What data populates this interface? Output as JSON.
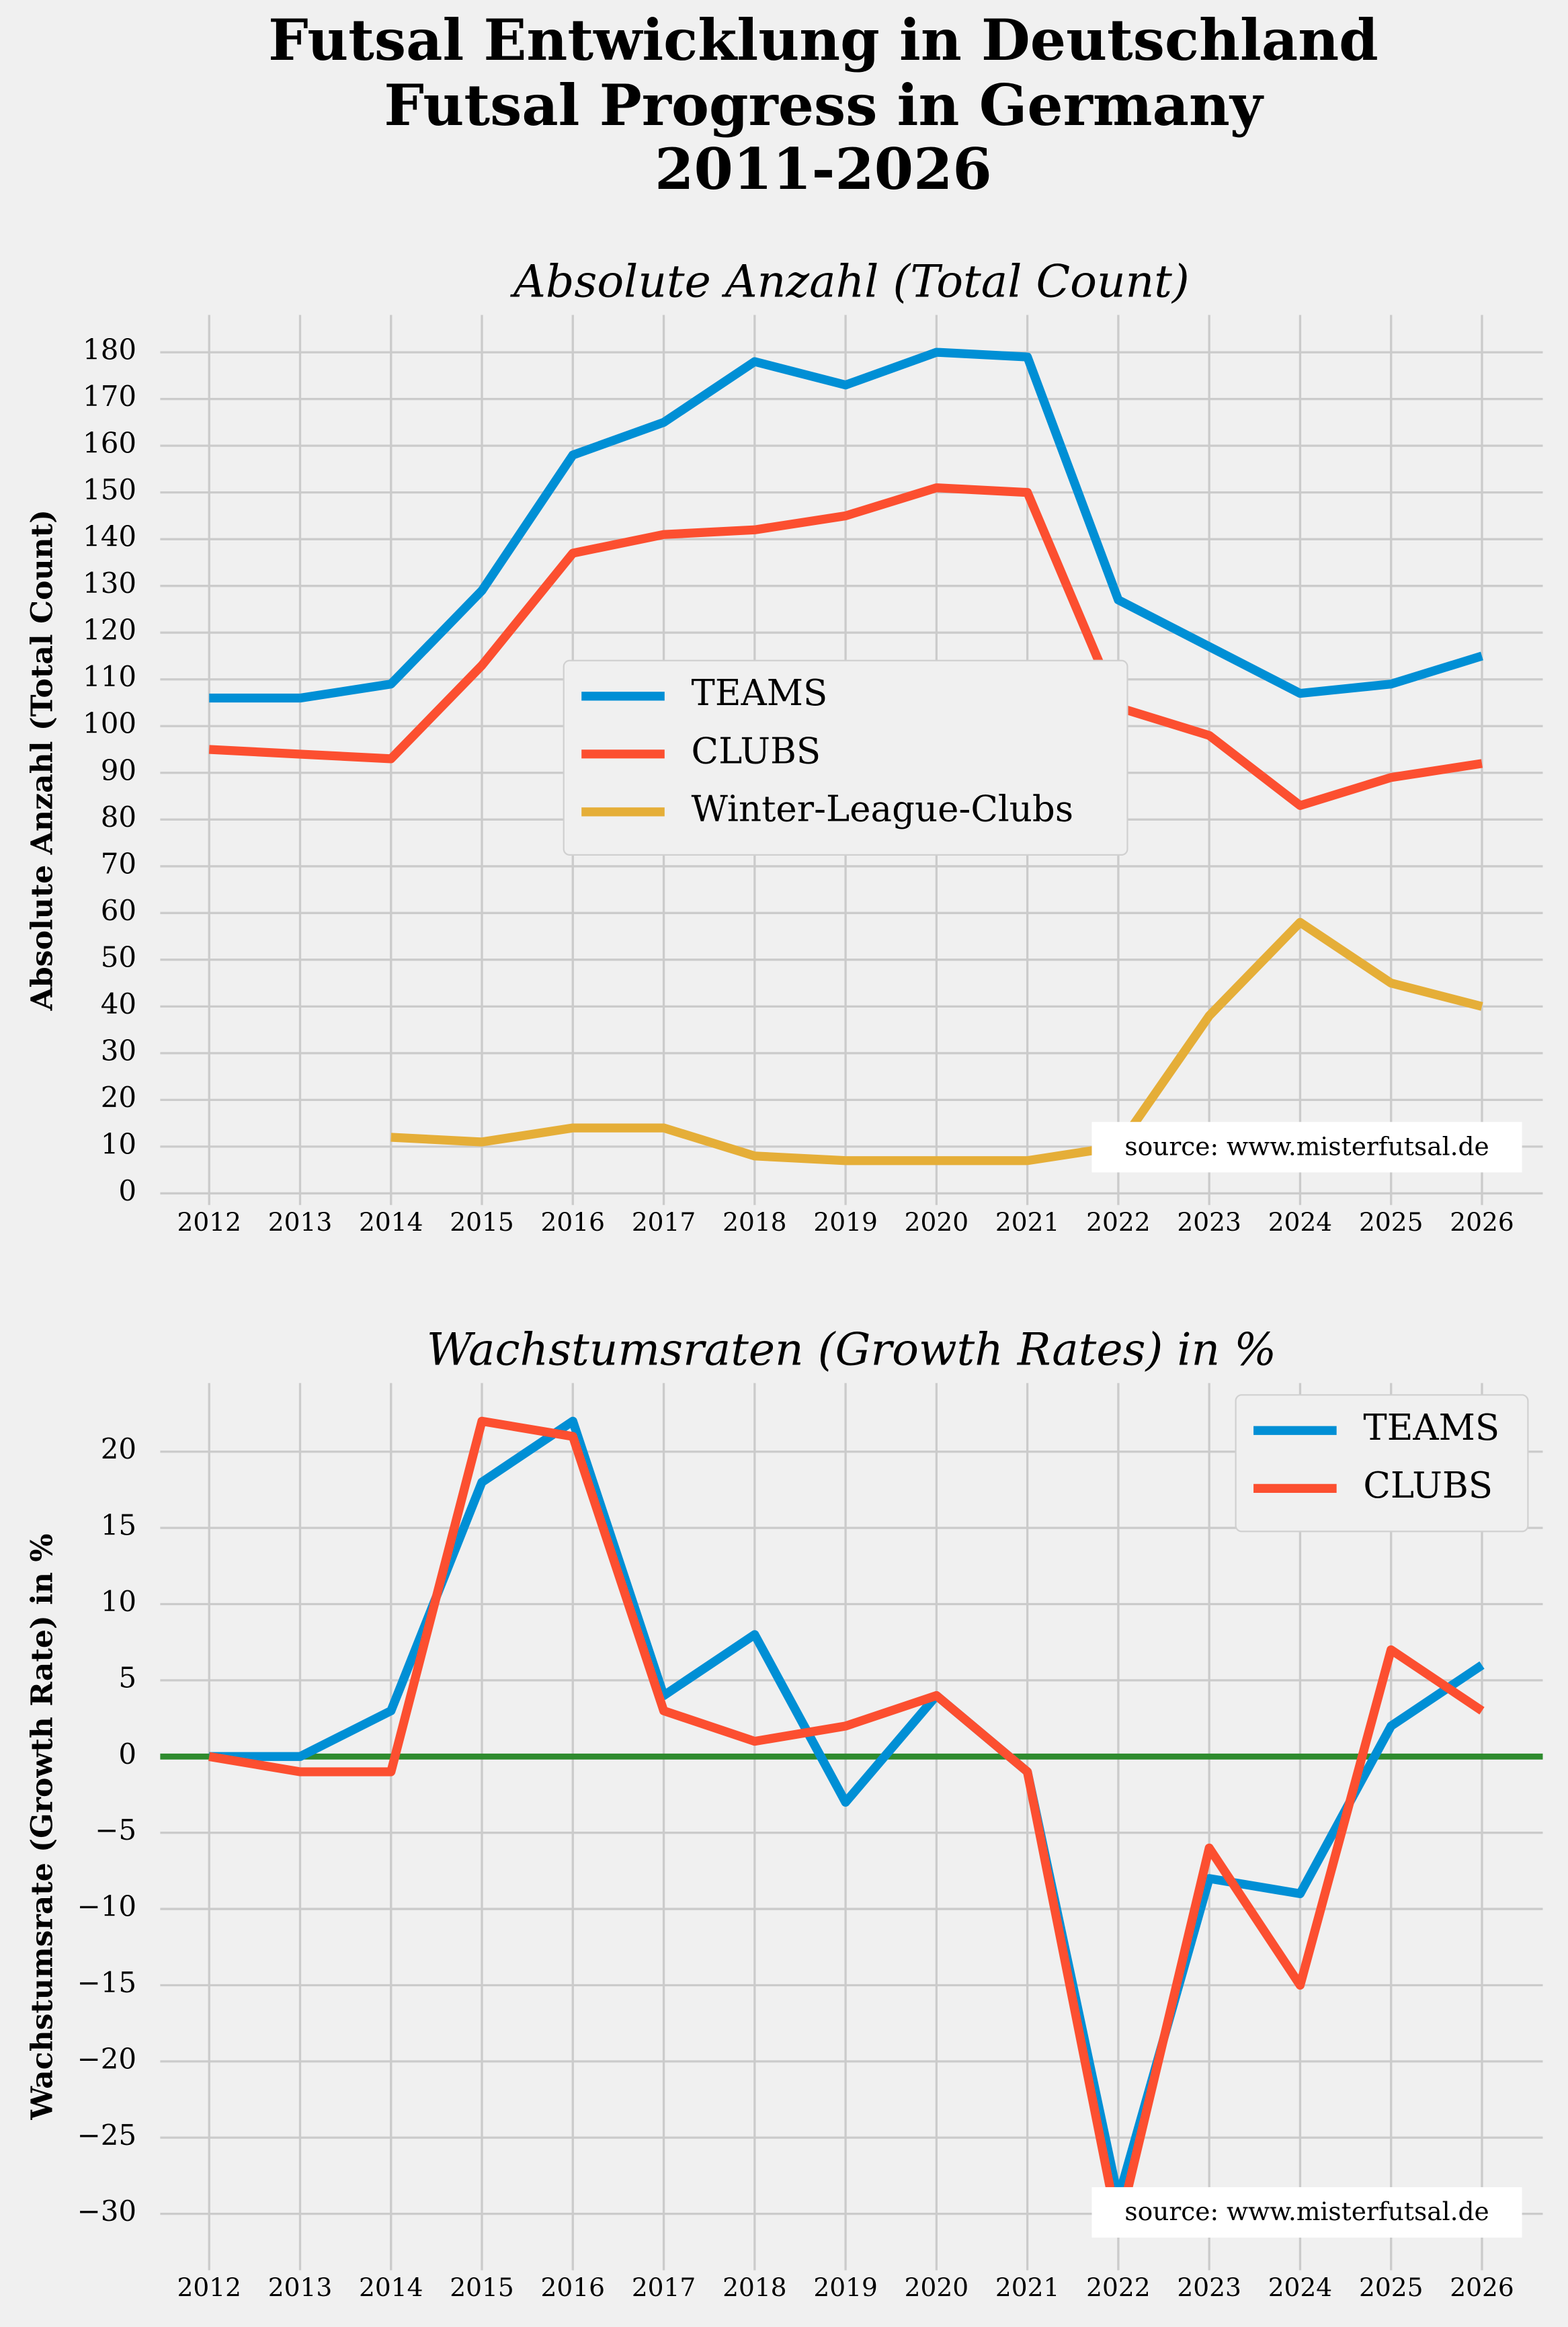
{
  "title": [
    "Futsal Entwicklung in Deutschland",
    "Futsal Progress in Germany",
    "2011-2026"
  ],
  "chart_data": [
    {
      "type": "line",
      "title": "Absolute Anzahl (Total Count)",
      "y_label": "Absolute Anzahl (Total Count)",
      "categories": [
        "2012",
        "2013",
        "2014",
        "2015",
        "2016",
        "2017",
        "2018",
        "2019",
        "2020",
        "2021",
        "2022",
        "2023",
        "2024",
        "2025",
        "2026"
      ],
      "series": [
        {
          "name": "TEAMS",
          "color": "#008fd5",
          "values": [
            106,
            106,
            109,
            129,
            158,
            165,
            178,
            173,
            180,
            179,
            127,
            117,
            107,
            109,
            115
          ]
        },
        {
          "name": "CLUBS",
          "color": "#fc4f30",
          "values": [
            95,
            94,
            93,
            113,
            137,
            141,
            142,
            145,
            151,
            150,
            104,
            98,
            83,
            89,
            92
          ]
        },
        {
          "name": "Winter-League-Clubs",
          "color": "#e5ae38",
          "values": [
            null,
            null,
            12,
            11,
            14,
            14,
            8,
            7,
            7,
            7,
            10,
            38,
            58,
            45,
            40
          ]
        }
      ],
      "ylim": [
        -2.5,
        188
      ],
      "yticks": [
        0,
        10,
        20,
        30,
        40,
        50,
        60,
        70,
        80,
        90,
        100,
        110,
        120,
        130,
        140,
        150,
        160,
        170,
        180
      ],
      "grid": true,
      "legend": "center",
      "annotation": "source: www.misterfutsal.de"
    },
    {
      "type": "line",
      "title": "Wachstumsraten (Growth Rates) in %",
      "y_label": "Wachstumsrate (Growth Rate) in %",
      "categories": [
        "2012",
        "2013",
        "2014",
        "2015",
        "2016",
        "2017",
        "2018",
        "2019",
        "2020",
        "2021",
        "2022",
        "2023",
        "2024",
        "2025",
        "2026"
      ],
      "series": [
        {
          "name": "TEAMS",
          "color": "#008fd5",
          "values": [
            0,
            0,
            3,
            18,
            22,
            4,
            8,
            -3,
            4,
            -1,
            -29,
            -8,
            -9,
            2,
            6
          ]
        },
        {
          "name": "CLUBS",
          "color": "#fc4f30",
          "values": [
            0,
            -1,
            -1,
            22,
            21,
            3,
            1,
            2,
            4,
            -1,
            -31,
            -6,
            -15,
            7,
            3
          ]
        }
      ],
      "ylim": [
        -33.7,
        24.5
      ],
      "yticks": [
        {
          "value": -30,
          "label": "−30"
        },
        {
          "value": -25,
          "label": "−25"
        },
        {
          "value": -20,
          "label": "−20"
        },
        {
          "value": -15,
          "label": "−15"
        },
        {
          "value": -10,
          "label": "−10"
        },
        {
          "value": -5,
          "label": "−5"
        },
        0,
        5,
        10,
        15,
        20
      ],
      "grid": true,
      "legend": "upper right",
      "reference_line": {
        "value": 0,
        "color": "#2e8b2e"
      },
      "annotation": "source: www.misterfutsal.de"
    }
  ]
}
